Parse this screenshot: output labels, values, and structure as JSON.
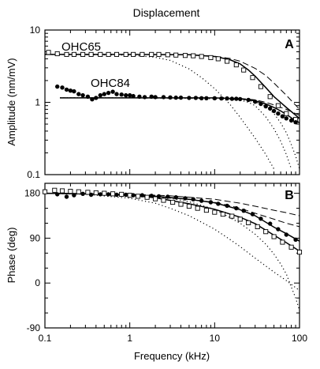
{
  "figure": {
    "title": "Displacement",
    "xlabel": "Frequency (kHz)",
    "x_ticks": [
      "0.1",
      "1",
      "10",
      "100"
    ]
  },
  "chart_data": [
    {
      "type": "scatter",
      "panel_label": "A",
      "ylabel": "Amplitude (nm/mV)",
      "xscale": "log",
      "yscale": "log",
      "xlim": [
        0.1,
        100
      ],
      "ylim": [
        0.1,
        10
      ],
      "y_ticks": [
        "10",
        "1",
        "0.1"
      ],
      "x_ticks": [
        "0.1",
        "1",
        "10",
        "100"
      ],
      "annotations": [
        "OHC65",
        "OHC84"
      ],
      "series": [
        {
          "name": "OHC65",
          "marker": "open-square",
          "x": [
            0.11,
            0.14,
            0.18,
            0.22,
            0.28,
            0.35,
            0.45,
            0.56,
            0.7,
            0.9,
            1.1,
            1.4,
            1.8,
            2.2,
            2.8,
            3.5,
            4.5,
            5.6,
            7,
            9,
            11,
            14,
            18,
            22,
            28,
            35,
            45,
            56,
            70,
            90
          ],
          "y": [
            4.9,
            4.7,
            4.6,
            4.6,
            4.6,
            4.6,
            4.6,
            4.6,
            4.6,
            4.6,
            4.6,
            4.6,
            4.6,
            4.6,
            4.55,
            4.5,
            4.45,
            4.4,
            4.3,
            4.15,
            4.0,
            3.7,
            3.3,
            2.8,
            2.2,
            1.65,
            1.2,
            0.9,
            0.7,
            0.58
          ]
        },
        {
          "name": "OHC84",
          "marker": "filled-circle",
          "x": [
            0.14,
            0.16,
            0.18,
            0.2,
            0.22,
            0.25,
            0.28,
            0.32,
            0.36,
            0.4,
            0.45,
            0.5,
            0.56,
            0.63,
            0.7,
            0.8,
            0.9,
            1.0,
            1.1,
            1.3,
            1.5,
            1.8,
            2.0,
            2.5,
            3,
            3.5,
            4,
            5,
            6,
            7,
            8,
            10,
            12,
            14,
            16,
            18,
            20,
            25,
            30,
            35,
            40,
            45,
            50,
            56,
            63,
            70,
            80,
            90
          ],
          "y": [
            1.65,
            1.6,
            1.5,
            1.45,
            1.42,
            1.3,
            1.25,
            1.2,
            1.1,
            1.15,
            1.25,
            1.3,
            1.35,
            1.4,
            1.3,
            1.28,
            1.25,
            1.25,
            1.22,
            1.2,
            1.18,
            1.2,
            1.18,
            1.18,
            1.17,
            1.16,
            1.16,
            1.15,
            1.15,
            1.14,
            1.14,
            1.14,
            1.13,
            1.13,
            1.12,
            1.12,
            1.11,
            1.08,
            1.02,
            0.95,
            0.88,
            0.82,
            0.76,
            0.7,
            0.64,
            0.6,
            0.56,
            0.53
          ]
        },
        {
          "name": "",
          "line": "solid",
          "x": [
            0.1,
            1,
            5,
            10,
            15,
            20,
            25,
            30,
            40,
            50,
            70,
            100
          ],
          "y": [
            4.6,
            4.6,
            4.55,
            4.3,
            3.9,
            3.4,
            2.8,
            2.3,
            1.6,
            1.2,
            0.85,
            0.6
          ]
        },
        {
          "name": "",
          "line": "solid",
          "x": [
            0.15,
            1,
            10,
            20,
            30,
            40,
            50,
            60,
            70,
            80,
            100
          ],
          "y": [
            1.15,
            1.15,
            1.15,
            1.12,
            1.05,
            0.95,
            0.85,
            0.76,
            0.68,
            0.61,
            0.52
          ]
        },
        {
          "name": "",
          "line": "dashed",
          "x": [
            0.1,
            1,
            5,
            10,
            15,
            20,
            30,
            40,
            50,
            70,
            100
          ],
          "y": [
            4.6,
            4.6,
            4.55,
            4.35,
            4.05,
            3.7,
            2.95,
            2.35,
            1.85,
            1.25,
            0.8
          ]
        },
        {
          "name": "",
          "line": "dashed",
          "x": [
            0.15,
            1,
            10,
            20,
            30,
            40,
            50,
            70,
            100
          ],
          "y": [
            1.15,
            1.15,
            1.15,
            1.13,
            1.08,
            1.0,
            0.92,
            0.8,
            0.66
          ]
        },
        {
          "name": "",
          "line": "dotted",
          "x": [
            0.1,
            1,
            2,
            3,
            5,
            7,
            10,
            15,
            20,
            30,
            40,
            50
          ],
          "y": [
            4.6,
            4.5,
            4.2,
            3.8,
            2.9,
            2.2,
            1.55,
            0.95,
            0.62,
            0.32,
            0.19,
            0.12
          ]
        },
        {
          "name": "",
          "line": "dotted",
          "x": [
            0.15,
            1,
            5,
            10,
            15,
            20,
            25,
            30,
            40,
            50,
            60,
            70,
            80
          ],
          "y": [
            1.15,
            1.15,
            1.14,
            1.12,
            1.1,
            1.07,
            1.0,
            0.9,
            0.63,
            0.43,
            0.29,
            0.19,
            0.12
          ]
        },
        {
          "name": "",
          "line": "dotted",
          "x": [
            0.15,
            1,
            10,
            20,
            30,
            40,
            50,
            60,
            70,
            80,
            90,
            100
          ],
          "y": [
            1.15,
            1.15,
            1.14,
            1.1,
            1.02,
            0.88,
            0.7,
            0.52,
            0.38,
            0.26,
            0.18,
            0.12
          ]
        }
      ]
    },
    {
      "type": "scatter",
      "panel_label": "B",
      "ylabel": "Phase (deg)",
      "xscale": "log",
      "xlim": [
        0.1,
        100
      ],
      "ylim": [
        -90,
        200
      ],
      "y_ticks": [
        "180",
        "90",
        "0",
        "-90"
      ],
      "x_ticks": [
        "0.1",
        "1",
        "10",
        "100"
      ],
      "series": [
        {
          "name": "OHC65",
          "marker": "open-square",
          "x": [
            0.1,
            0.13,
            0.16,
            0.2,
            0.25,
            0.32,
            0.4,
            0.5,
            0.63,
            0.8,
            1.0,
            1.25,
            1.6,
            2.0,
            2.5,
            3.2,
            4.0,
            5.0,
            6.3,
            8,
            10,
            12.5,
            16,
            20,
            25,
            32,
            40,
            50,
            63,
            80,
            100
          ],
          "y": [
            183,
            186,
            185,
            184,
            183,
            182,
            181,
            180,
            179,
            178,
            176,
            174,
            172,
            169,
            166,
            162,
            158,
            154,
            150,
            146,
            142,
            138,
            134,
            128,
            121,
            113,
            103,
            93,
            82,
            72,
            62
          ]
        },
        {
          "name": "OHC84",
          "marker": "filled-circle",
          "x": [
            0.14,
            0.18,
            0.22,
            0.28,
            0.35,
            0.45,
            0.56,
            0.7,
            0.9,
            1.1,
            1.4,
            1.8,
            2.2,
            2.8,
            3.5,
            4.5,
            5.6,
            7,
            9,
            11,
            14,
            18,
            22,
            28,
            35,
            45,
            56,
            70,
            90
          ],
          "y": [
            178,
            173,
            176,
            179,
            177,
            178,
            178,
            177,
            177,
            176,
            176,
            175,
            174,
            173,
            172,
            170,
            168,
            165,
            162,
            159,
            155,
            150,
            145,
            138,
            129,
            119,
            108,
            97,
            87
          ]
        },
        {
          "name": "",
          "line": "solid",
          "x": [
            0.1,
            0.3,
            1,
            2,
            5,
            10,
            20,
            30,
            50,
            70,
            100
          ],
          "y": [
            180,
            179,
            176,
            171,
            159,
            148,
            132,
            119,
            96,
            81,
            64
          ]
        },
        {
          "name": "",
          "line": "solid",
          "x": [
            0.1,
            0.3,
            1,
            2,
            5,
            10,
            20,
            30,
            50,
            70,
            100
          ],
          "y": [
            180,
            179,
            177,
            174,
            168,
            161,
            147,
            135,
            112,
            99,
            84
          ]
        },
        {
          "name": "",
          "line": "dashed",
          "x": [
            0.1,
            1,
            3,
            10,
            20,
            30,
            50,
            70,
            100
          ],
          "y": [
            180,
            178,
            175,
            168,
            160,
            154,
            146,
            141,
            135
          ]
        },
        {
          "name": "",
          "line": "dashed",
          "x": [
            0.1,
            1,
            3,
            10,
            20,
            30,
            50,
            70,
            100
          ],
          "y": [
            180,
            177,
            172,
            162,
            150,
            140,
            128,
            120,
            113
          ]
        },
        {
          "name": "",
          "line": "dotted",
          "x": [
            0.1,
            0.3,
            1,
            2,
            3,
            5,
            7,
            10,
            15,
            20,
            30,
            50,
            70,
            100
          ],
          "y": [
            180,
            178,
            170,
            160,
            150,
            135,
            122,
            108,
            88,
            73,
            50,
            22,
            5,
            -15
          ]
        },
        {
          "name": "",
          "line": "dotted",
          "x": [
            0.1,
            0.5,
            1,
            3,
            5,
            10,
            20,
            30,
            40,
            50,
            60,
            70,
            80,
            90,
            100
          ],
          "y": [
            180,
            179,
            178,
            170,
            163,
            148,
            120,
            98,
            78,
            58,
            38,
            18,
            -8,
            -30,
            -55
          ]
        }
      ]
    }
  ]
}
